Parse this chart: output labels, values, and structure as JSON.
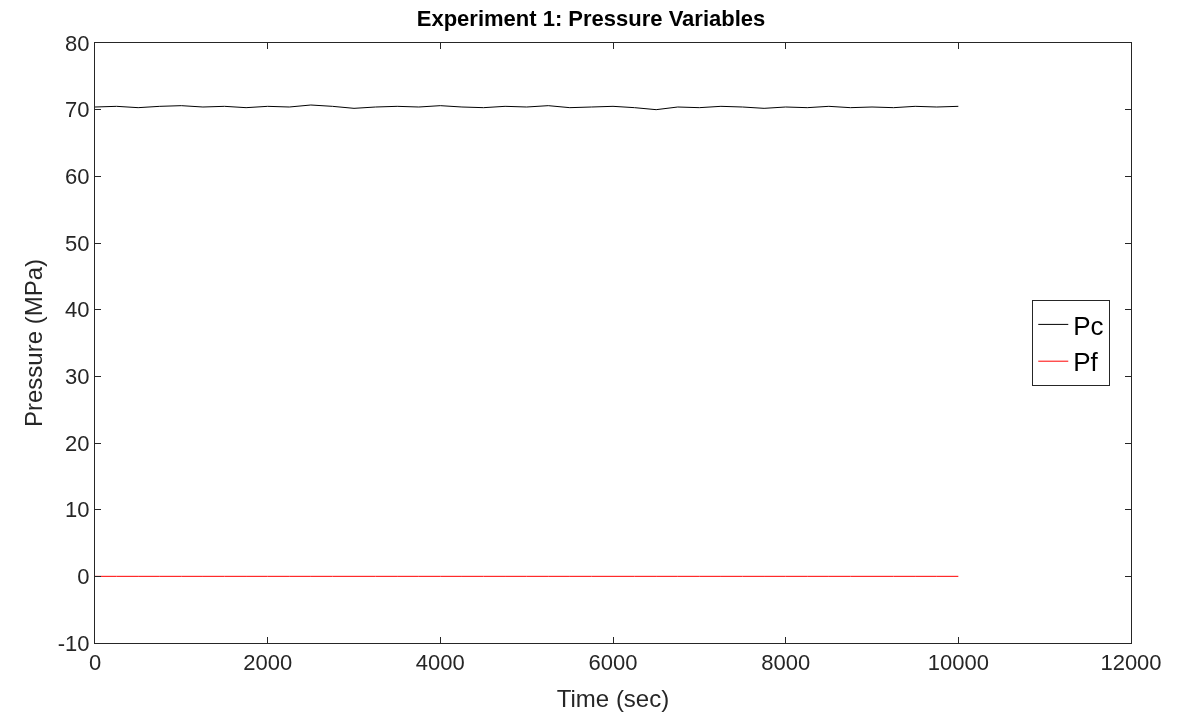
{
  "chart_data": {
    "type": "line",
    "title": "Experiment 1: Pressure Variables",
    "xlabel": "Time (sec)",
    "ylabel": "Pressure (MPa)",
    "x": [
      0,
      250,
      500,
      750,
      1000,
      1250,
      1500,
      1750,
      2000,
      2250,
      2500,
      2750,
      3000,
      3250,
      3500,
      3750,
      4000,
      4250,
      4500,
      4750,
      5000,
      5250,
      5500,
      5750,
      6000,
      6250,
      6500,
      6750,
      7000,
      7250,
      7500,
      7750,
      8000,
      8250,
      8500,
      8750,
      9000,
      9250,
      9500,
      9750,
      10000
    ],
    "series": [
      {
        "name": "Pc",
        "color": "#000000",
        "values": [
          70.4,
          70.5,
          70.3,
          70.5,
          70.6,
          70.4,
          70.5,
          70.3,
          70.5,
          70.4,
          70.7,
          70.5,
          70.2,
          70.4,
          70.5,
          70.4,
          70.6,
          70.4,
          70.3,
          70.5,
          70.4,
          70.6,
          70.3,
          70.4,
          70.5,
          70.3,
          70.0,
          70.4,
          70.3,
          70.5,
          70.4,
          70.2,
          70.4,
          70.3,
          70.5,
          70.3,
          70.4,
          70.3,
          70.5,
          70.4,
          70.5
        ]
      },
      {
        "name": "Pf",
        "color": "#ff0000",
        "values": [
          0,
          0,
          0,
          0,
          0,
          0,
          0,
          0,
          0,
          0,
          0,
          0,
          0,
          0,
          0,
          0,
          0,
          0,
          0,
          0,
          0,
          0,
          0,
          0,
          0,
          0,
          0,
          0,
          0,
          0,
          0,
          0,
          0,
          0,
          0,
          0,
          0,
          0,
          0,
          0,
          0
        ]
      }
    ],
    "xlim": [
      0,
      12000
    ],
    "xticks": [
      0,
      2000,
      4000,
      6000,
      8000,
      10000,
      12000
    ],
    "ylim": [
      -10,
      80
    ],
    "yticks": [
      -10,
      0,
      10,
      20,
      30,
      40,
      50,
      60,
      70,
      80
    ],
    "legend": "right",
    "line_style": "solid",
    "marker": "none"
  }
}
